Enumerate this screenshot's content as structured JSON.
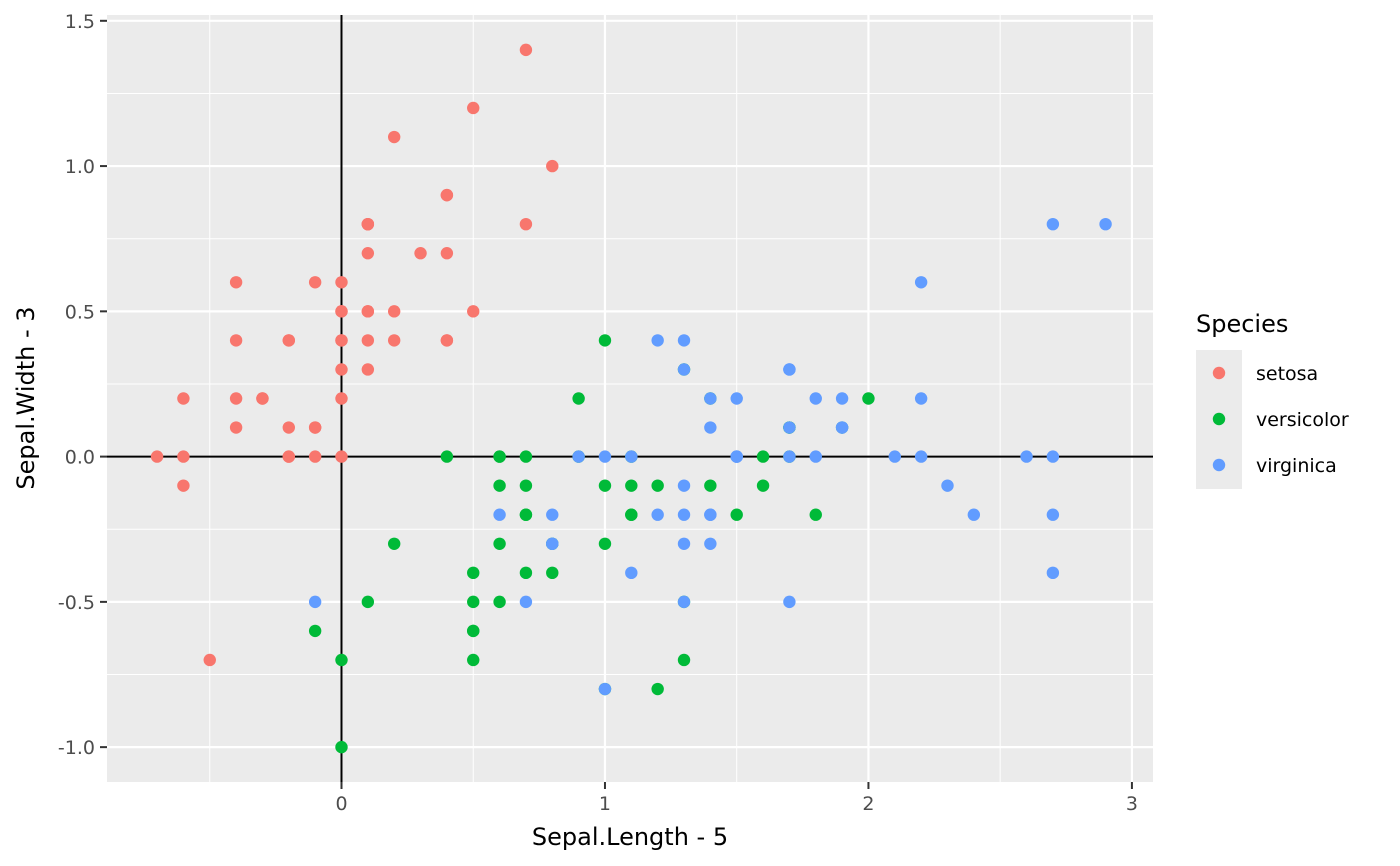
{
  "chart_data": {
    "type": "scatter",
    "xlabel": "Sepal.Length - 5",
    "ylabel": "Sepal.Width - 3",
    "xlim": [
      -0.89,
      3.08
    ],
    "ylim": [
      -1.12,
      1.52
    ],
    "x_ticks": [
      0,
      1,
      2,
      3
    ],
    "y_ticks": [
      -1.0,
      -0.5,
      0.0,
      0.5,
      1.0,
      1.5
    ],
    "x_tick_labels": [
      "0",
      "1",
      "2",
      "3"
    ],
    "y_tick_labels": [
      "-1.0",
      "-0.5",
      "0.0",
      "0.5",
      "1.0",
      "1.5"
    ],
    "reference_lines": {
      "x": 0,
      "y": 0
    },
    "grid": true,
    "background": "#ebebeb",
    "legend": {
      "title": "Species",
      "position": "right"
    },
    "series": [
      {
        "name": "setosa",
        "color": "#f8766d",
        "points": [
          [
            0.1,
            0.5
          ],
          [
            -0.1,
            0.0
          ],
          [
            -0.3,
            0.2
          ],
          [
            -0.4,
            0.1
          ],
          [
            0.0,
            0.6
          ],
          [
            0.4,
            0.9
          ],
          [
            -0.4,
            0.4
          ],
          [
            0.0,
            0.4
          ],
          [
            -0.6,
            -0.1
          ],
          [
            -0.1,
            0.1
          ],
          [
            0.4,
            0.7
          ],
          [
            -0.2,
            0.4
          ],
          [
            -0.2,
            0.0
          ],
          [
            -0.7,
            0.0
          ],
          [
            0.8,
            1.0
          ],
          [
            0.7,
            1.4
          ],
          [
            0.4,
            0.9
          ],
          [
            0.1,
            0.5
          ],
          [
            0.7,
            0.8
          ],
          [
            0.1,
            0.8
          ],
          [
            0.4,
            0.4
          ],
          [
            0.1,
            0.7
          ],
          [
            -0.4,
            0.6
          ],
          [
            0.1,
            0.3
          ],
          [
            -0.2,
            0.4
          ],
          [
            0.0,
            0.0
          ],
          [
            0.0,
            0.4
          ],
          [
            0.2,
            0.5
          ],
          [
            0.2,
            0.4
          ],
          [
            -0.3,
            0.2
          ],
          [
            -0.2,
            0.1
          ],
          [
            0.4,
            0.4
          ],
          [
            0.2,
            1.1
          ],
          [
            0.5,
            1.2
          ],
          [
            -0.1,
            0.1
          ],
          [
            0.0,
            0.2
          ],
          [
            0.5,
            0.5
          ],
          [
            -0.1,
            0.6
          ],
          [
            -0.6,
            0.0
          ],
          [
            0.1,
            0.4
          ],
          [
            0.0,
            0.5
          ],
          [
            -0.5,
            -0.7
          ],
          [
            -0.6,
            0.2
          ],
          [
            0.0,
            0.5
          ],
          [
            0.1,
            0.8
          ],
          [
            -0.2,
            0.0
          ],
          [
            0.1,
            0.8
          ],
          [
            -0.4,
            0.2
          ],
          [
            0.3,
            0.7
          ],
          [
            0.0,
            0.3
          ]
        ]
      },
      {
        "name": "versicolor",
        "color": "#00ba38",
        "points": [
          [
            2.0,
            0.2
          ],
          [
            1.4,
            0.2
          ],
          [
            1.9,
            0.1
          ],
          [
            0.5,
            -0.7
          ],
          [
            1.5,
            -0.2
          ],
          [
            0.7,
            -0.2
          ],
          [
            1.3,
            0.3
          ],
          [
            -0.1,
            -0.6
          ],
          [
            1.6,
            -0.1
          ],
          [
            0.2,
            -0.3
          ],
          [
            0.0,
            -1.0
          ],
          [
            0.9,
            0.0
          ],
          [
            1.0,
            -0.8
          ],
          [
            1.1,
            -0.1
          ],
          [
            0.6,
            -0.1
          ],
          [
            1.7,
            0.1
          ],
          [
            0.6,
            0.0
          ],
          [
            0.8,
            -0.3
          ],
          [
            1.2,
            -0.8
          ],
          [
            0.6,
            -0.5
          ],
          [
            0.9,
            0.2
          ],
          [
            1.1,
            -0.2
          ],
          [
            1.3,
            -0.5
          ],
          [
            1.1,
            -0.2
          ],
          [
            1.4,
            -0.1
          ],
          [
            1.6,
            0.0
          ],
          [
            1.8,
            -0.2
          ],
          [
            1.7,
            0.0
          ],
          [
            1.0,
            -0.1
          ],
          [
            0.7,
            -0.4
          ],
          [
            0.5,
            -0.6
          ],
          [
            0.5,
            -0.6
          ],
          [
            0.8,
            -0.3
          ],
          [
            1.0,
            -0.3
          ],
          [
            0.4,
            0.0
          ],
          [
            1.0,
            0.4
          ],
          [
            1.7,
            0.1
          ],
          [
            1.3,
            -0.7
          ],
          [
            0.6,
            0.0
          ],
          [
            0.5,
            -0.5
          ],
          [
            0.5,
            -0.4
          ],
          [
            1.1,
            0.0
          ],
          [
            0.8,
            -0.4
          ],
          [
            0.0,
            -0.7
          ],
          [
            0.6,
            -0.3
          ],
          [
            0.7,
            0.0
          ],
          [
            0.7,
            -0.1
          ],
          [
            1.2,
            -0.1
          ],
          [
            0.1,
            -0.5
          ],
          [
            0.7,
            -0.2
          ]
        ]
      },
      {
        "name": "virginica",
        "color": "#619cff",
        "points": [
          [
            1.3,
            0.3
          ],
          [
            0.8,
            -0.3
          ],
          [
            2.1,
            0.0
          ],
          [
            1.3,
            -0.1
          ],
          [
            1.5,
            0.0
          ],
          [
            2.6,
            0.0
          ],
          [
            -0.1,
            -0.5
          ],
          [
            2.3,
            -0.1
          ],
          [
            1.7,
            -0.5
          ],
          [
            2.2,
            0.6
          ],
          [
            1.5,
            0.2
          ],
          [
            1.4,
            -0.3
          ],
          [
            1.8,
            0.0
          ],
          [
            0.7,
            -0.5
          ],
          [
            0.8,
            -0.2
          ],
          [
            1.4,
            0.2
          ],
          [
            1.5,
            0.0
          ],
          [
            2.7,
            0.8
          ],
          [
            2.7,
            -0.4
          ],
          [
            1.0,
            -0.8
          ],
          [
            1.9,
            0.2
          ],
          [
            0.6,
            -0.2
          ],
          [
            2.7,
            -0.2
          ],
          [
            1.3,
            -0.3
          ],
          [
            1.7,
            0.3
          ],
          [
            2.2,
            0.2
          ],
          [
            1.2,
            -0.2
          ],
          [
            1.1,
            0.0
          ],
          [
            1.4,
            -0.2
          ],
          [
            2.2,
            0.0
          ],
          [
            2.4,
            -0.2
          ],
          [
            2.9,
            0.8
          ],
          [
            1.4,
            -0.2
          ],
          [
            1.3,
            -0.2
          ],
          [
            1.1,
            -0.4
          ],
          [
            2.7,
            0.0
          ],
          [
            1.3,
            0.4
          ],
          [
            1.4,
            0.1
          ],
          [
            1.0,
            0.0
          ],
          [
            1.9,
            0.1
          ],
          [
            1.7,
            0.1
          ],
          [
            1.9,
            0.1
          ],
          [
            0.8,
            -0.3
          ],
          [
            1.8,
            0.2
          ],
          [
            1.7,
            0.3
          ],
          [
            1.7,
            0.0
          ],
          [
            1.3,
            -0.5
          ],
          [
            1.5,
            0.0
          ],
          [
            1.2,
            0.4
          ],
          [
            0.9,
            0.0
          ]
        ]
      }
    ]
  }
}
